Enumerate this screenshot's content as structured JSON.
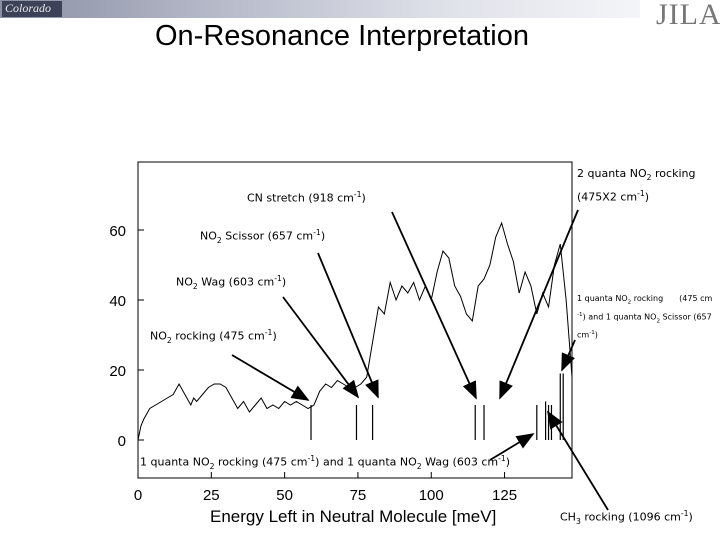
{
  "slide": {
    "title": "On-Resonance Interpretation",
    "logo_left": "Colorado",
    "logo_right": "JILA"
  },
  "chart_data": {
    "type": "line",
    "xlabel": "Energy Left in Neutral Molecule [meV]",
    "ylabel": "",
    "xlim": [
      0,
      148
    ],
    "ylim": [
      0,
      68
    ],
    "xticks": [
      0,
      25,
      50,
      75,
      100,
      125
    ],
    "yticks": [
      0,
      20,
      40,
      60
    ],
    "series": [
      {
        "values": [
          [
            0,
            0
          ],
          [
            1,
            4
          ],
          [
            2,
            6
          ],
          [
            4,
            9
          ],
          [
            6,
            10
          ],
          [
            8,
            11
          ],
          [
            10,
            12
          ],
          [
            12,
            13
          ],
          [
            14,
            16
          ],
          [
            16,
            13
          ],
          [
            18,
            10
          ],
          [
            19,
            12
          ],
          [
            20,
            11
          ],
          [
            22,
            13
          ],
          [
            24,
            15
          ],
          [
            26,
            16
          ],
          [
            28,
            16
          ],
          [
            30,
            15
          ],
          [
            32,
            12
          ],
          [
            34,
            9
          ],
          [
            36,
            11
          ],
          [
            38,
            8
          ],
          [
            40,
            10
          ],
          [
            42,
            12
          ],
          [
            44,
            9
          ],
          [
            46,
            10
          ],
          [
            48,
            9
          ],
          [
            50,
            11
          ],
          [
            52,
            10
          ],
          [
            54,
            11
          ],
          [
            56,
            10
          ],
          [
            58,
            9
          ],
          [
            60,
            10
          ],
          [
            62,
            14
          ],
          [
            64,
            16
          ],
          [
            66,
            15
          ],
          [
            68,
            17
          ],
          [
            70,
            16
          ],
          [
            72,
            15
          ],
          [
            74,
            15
          ],
          [
            76,
            16
          ],
          [
            78,
            18
          ],
          [
            80,
            28
          ],
          [
            82,
            38
          ],
          [
            84,
            36
          ],
          [
            86,
            45
          ],
          [
            88,
            40
          ],
          [
            90,
            44
          ],
          [
            92,
            42
          ],
          [
            94,
            45
          ],
          [
            96,
            40
          ],
          [
            98,
            44
          ],
          [
            100,
            40
          ],
          [
            102,
            48
          ],
          [
            104,
            54
          ],
          [
            106,
            52
          ],
          [
            108,
            44
          ],
          [
            110,
            41
          ],
          [
            112,
            36
          ],
          [
            114,
            34
          ],
          [
            116,
            44
          ],
          [
            118,
            46
          ],
          [
            120,
            50
          ],
          [
            122,
            58
          ],
          [
            124,
            62
          ],
          [
            126,
            56
          ],
          [
            128,
            51
          ],
          [
            130,
            42
          ],
          [
            132,
            48
          ],
          [
            134,
            44
          ],
          [
            136,
            36
          ],
          [
            138,
            42
          ],
          [
            140,
            38
          ],
          [
            142,
            50
          ],
          [
            144,
            56
          ],
          [
            146,
            40
          ],
          [
            148,
            18
          ]
        ]
      },
      {
        "type": "stick",
        "values": [
          [
            59,
            10
          ],
          [
            74.5,
            10
          ],
          [
            80,
            10
          ],
          [
            115,
            10
          ],
          [
            118,
            10
          ],
          [
            136,
            10
          ],
          [
            139,
            11
          ],
          [
            140,
            10
          ],
          [
            141,
            10
          ],
          [
            144,
            19
          ],
          [
            145,
            19
          ]
        ]
      }
    ],
    "annotations": [
      {
        "id": "cn-stretch",
        "text_before": "CN stretch (918 cm",
        "sup": "-1",
        "text_after": ")"
      },
      {
        "id": "no2-scissor",
        "text_before": "NO",
        "sub": "2",
        "text_mid": " Scissor (657 cm",
        "sup": "-1",
        "text_after": ")"
      },
      {
        "id": "no2-wag",
        "text_before": "NO",
        "sub": "2",
        "text_mid": " Wag (603 cm",
        "sup": "-1",
        "text_after": ")"
      },
      {
        "id": "no2-rocking",
        "text_before": "NO",
        "sub": "2",
        "text_mid": " rocking (475 cm",
        "sup": "-1",
        "text_after": ")"
      },
      {
        "id": "two-quanta",
        "line1_before": "2 quanta NO",
        "line1_sub": "2",
        "line1_after": " rocking",
        "line2_before": "(475X2 cm",
        "line2_sup": "-1",
        "line2_after": ")"
      },
      {
        "id": "combo-scissor",
        "line1_before": "1 quanta NO",
        "line1_sub": "2",
        "line1_mid": " rocking",
        "line1_after": "(475 cm",
        "line2_before": "",
        "line2_sup": "-1",
        "line2_mid": ") and 1 quanta NO",
        "line2_sub": "2",
        "line2_after": " Scissor (657",
        "line3_before": "cm",
        "line3_sup": "-1",
        "line3_after": ")"
      },
      {
        "id": "combo-wag",
        "text_1": "1 quanta NO",
        "sub_1": "2",
        "text_2": " rocking (475 cm",
        "sup_1": "-1",
        "text_3": ") and 1 quanta NO",
        "sub_2": "2",
        "text_4": " Wag (603 cm",
        "sup_2": "-1",
        "text_5": ")"
      },
      {
        "id": "ch3-rocking",
        "text_before": "CH",
        "sub": "3",
        "text_mid": " rocking (1096 cm",
        "sup": "-1",
        "text_after": ")"
      }
    ],
    "colors": {
      "line": "#000000",
      "axis": "#000000",
      "grid": "#c8c8c8"
    }
  }
}
